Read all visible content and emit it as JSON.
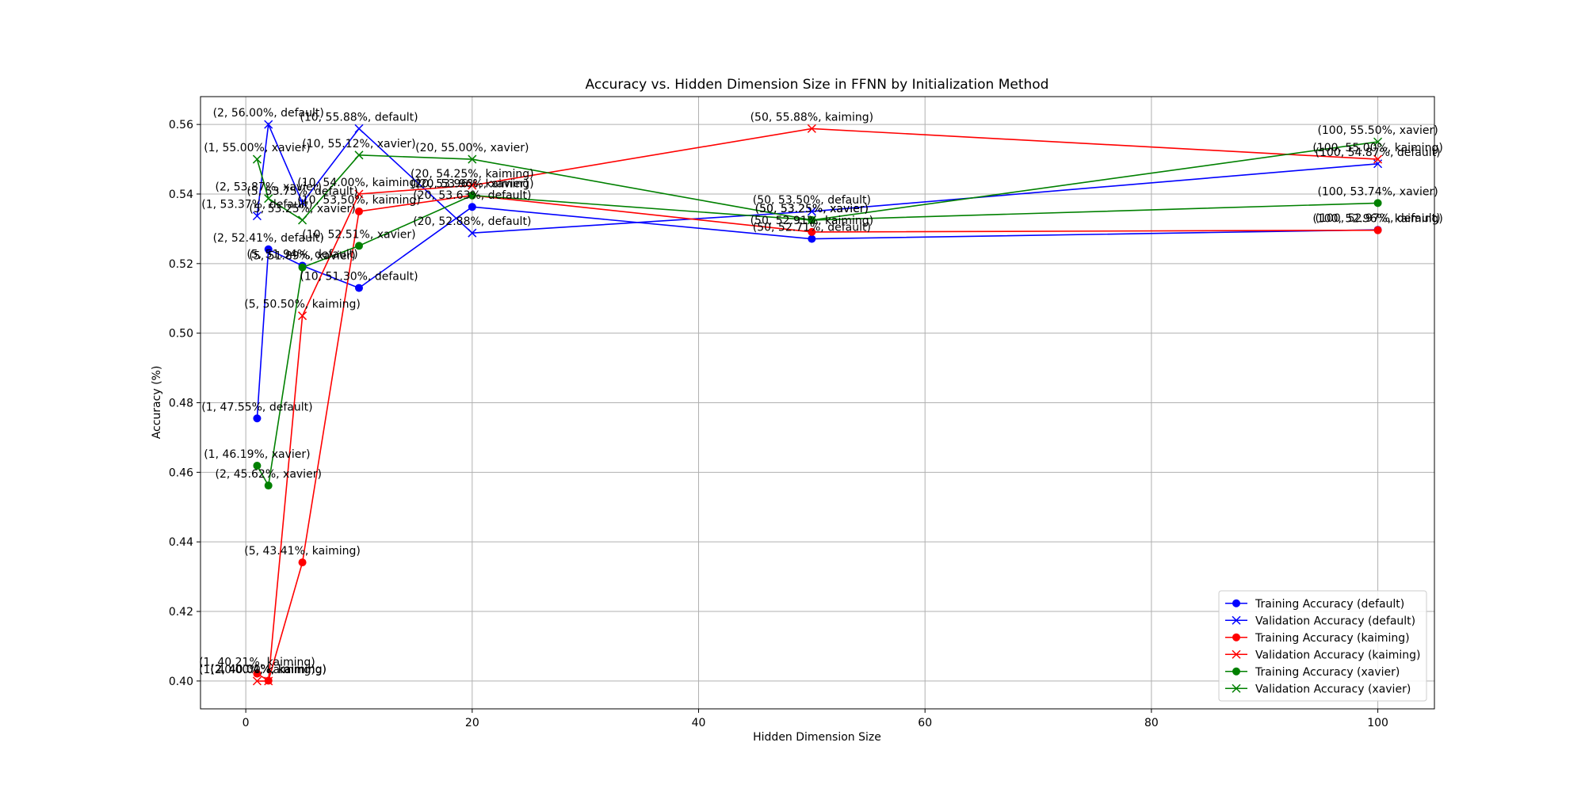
{
  "chart_data": {
    "type": "line",
    "title": "Accuracy vs. Hidden Dimension Size in FFNN by Initialization Method",
    "xlabel": "Hidden Dimension Size",
    "ylabel": "Accuracy (%)",
    "xlim": [
      -4,
      105
    ],
    "ylim": [
      0.392,
      0.568
    ],
    "xticks": [
      0,
      20,
      40,
      60,
      80,
      100
    ],
    "yticks": [
      0.4,
      0.42,
      0.44,
      0.46,
      0.48,
      0.5,
      0.52,
      0.54,
      0.56
    ],
    "xtick_labels": [
      "0",
      "20",
      "40",
      "60",
      "80",
      "100"
    ],
    "ytick_labels": [
      "0.40",
      "0.42",
      "0.44",
      "0.46",
      "0.48",
      "0.50",
      "0.52",
      "0.54",
      "0.56"
    ],
    "grid": true,
    "legend_position": "bottom-right",
    "x": [
      1,
      2,
      5,
      10,
      20,
      50,
      100
    ],
    "series": [
      {
        "name": "Training Accuracy (default)",
        "color": "#0000ff",
        "marker": "circle",
        "values": [
          0.4755,
          0.5241,
          0.5194,
          0.513,
          0.5363,
          0.5271,
          0.5297
        ],
        "labels": [
          "(1, 47.55%, default)",
          "(2, 52.41%, default)",
          "(5, 51.94%, default)",
          "(10, 51.30%, default)",
          "(20, 53.63%, default)",
          "(50, 52.71%, default)",
          "(100, 52.97%, default)"
        ]
      },
      {
        "name": "Validation Accuracy (default)",
        "color": "#0000ff",
        "marker": "x",
        "values": [
          0.5337,
          0.56,
          0.5375,
          0.5588,
          0.5288,
          0.535,
          0.5487
        ],
        "labels": [
          "(1, 53.37%, default)",
          "(2, 56.00%, default)",
          "(5, 53.75%, default)",
          "(10, 55.88%, default)",
          "(20, 52.88%, default)",
          "(50, 53.50%, default)",
          "(100, 54.87%, default)"
        ]
      },
      {
        "name": "Training Accuracy (kaiming)",
        "color": "#ff0000",
        "marker": "circle",
        "values": [
          0.4021,
          0.4001,
          0.4341,
          0.535,
          0.5396,
          0.5291,
          0.5296
        ],
        "labels": [
          "(1, 40.21%, kaiming)",
          "(2, 40.01%, kaiming)",
          "(5, 43.41%, kaiming)",
          "(10, 53.50%, kaiming)",
          "(20, 53.96%, kaiming)",
          "(50, 52.91%, kaiming)",
          "(100, 52.96%, kaiming)"
        ]
      },
      {
        "name": "Validation Accuracy (kaiming)",
        "color": "#ff0000",
        "marker": "x",
        "values": [
          0.4,
          0.4,
          0.505,
          0.54,
          0.5425,
          0.5588,
          0.55
        ],
        "labels": [
          "(1, 40.00%, kaiming)",
          "(2, 40.00%, kaiming)",
          "(5, 50.50%, kaiming)",
          "(10, 54.00%, kaiming)",
          "(20, 54.25%, kaiming)",
          "(50, 55.88%, kaiming)",
          "(100, 55.00%, kaiming)"
        ]
      },
      {
        "name": "Training Accuracy (xavier)",
        "color": "#008000",
        "marker": "circle",
        "values": [
          0.4619,
          0.4562,
          0.5189,
          0.5251,
          0.5396,
          0.5325,
          0.5374
        ],
        "labels": [
          "(1, 46.19%, xavier)",
          "(2, 45.62%, xavier)",
          "(5, 51.89%, xavier)",
          "(10, 52.51%, xavier)",
          "(20, 53.96%, xavier)",
          "(50, 53.25%, xavier)",
          "(100, 53.74%, xavier)"
        ]
      },
      {
        "name": "Validation Accuracy (xavier)",
        "color": "#008000",
        "marker": "x",
        "values": [
          0.55,
          0.5387,
          0.5325,
          0.5512,
          0.55,
          0.5325,
          0.555
        ],
        "labels": [
          "(1, 55.00%, xavier)",
          "(2, 53.87%, xavier)",
          "(5, 53.25%, xavier)",
          "(10, 55.12%, xavier)",
          "(20, 55.00%, xavier)",
          "(50, 53.25%, xavier)",
          "(100, 55.50%, xavier)"
        ]
      }
    ]
  }
}
